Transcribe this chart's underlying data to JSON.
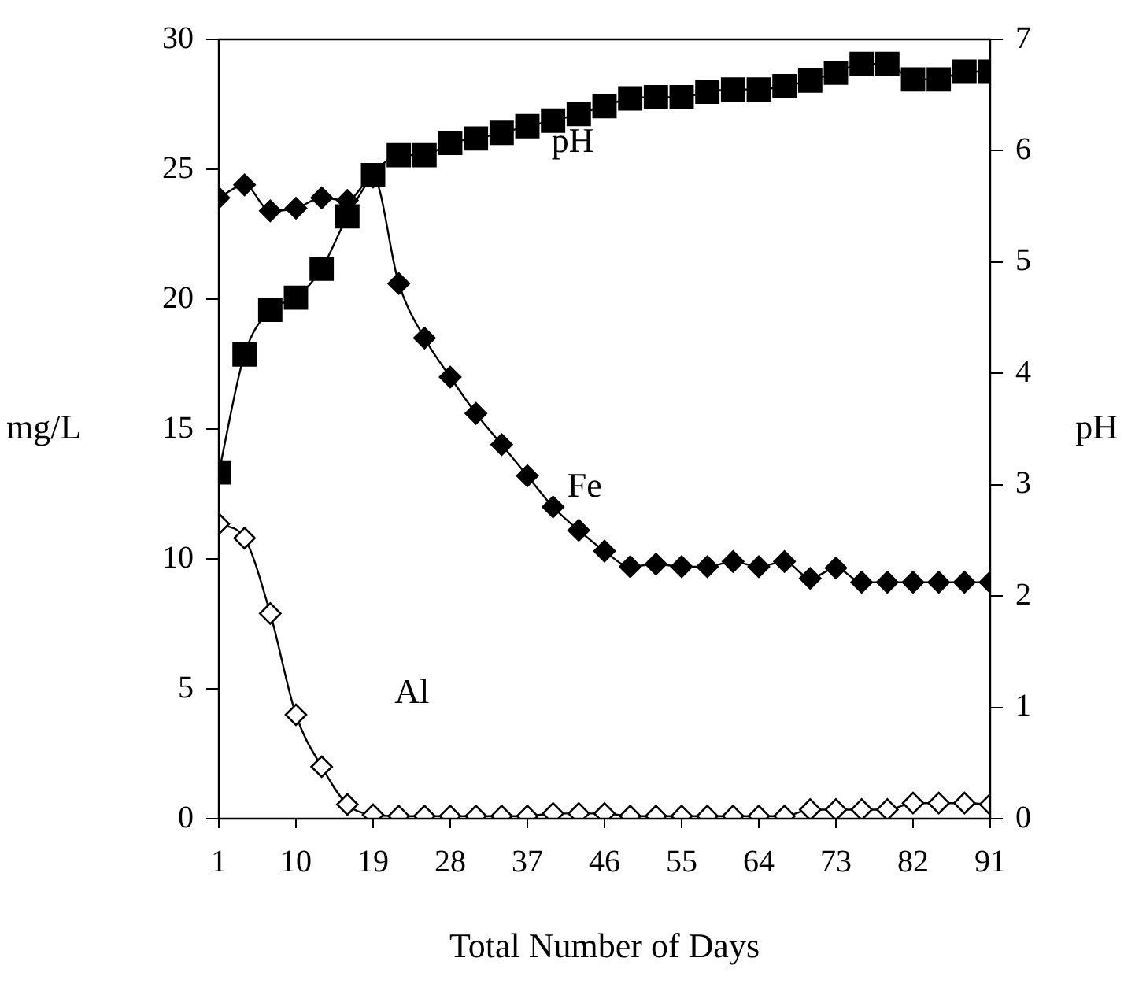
{
  "chart_data": {
    "type": "line",
    "xlabel": "Total Number of Days",
    "ylabel": "mg/L",
    "y2label": "pH",
    "x": [
      1,
      4,
      7,
      10,
      13,
      16,
      19,
      22,
      25,
      28,
      31,
      34,
      37,
      40,
      43,
      46,
      49,
      52,
      55,
      58,
      61,
      64,
      67,
      70,
      73,
      76,
      79,
      82,
      85,
      88,
      91
    ],
    "xlim": [
      1,
      91
    ],
    "xticks": [
      1,
      10,
      19,
      28,
      37,
      46,
      55,
      64,
      73,
      82,
      91
    ],
    "ylim": [
      0,
      30
    ],
    "yticks": [
      0,
      5,
      10,
      15,
      20,
      25,
      30
    ],
    "y2lim": [
      0,
      7
    ],
    "y2ticks": [
      0,
      1,
      2,
      3,
      4,
      5,
      6,
      7
    ],
    "grid": false,
    "legend": false,
    "line_style": "solid",
    "series": [
      {
        "name": "Fe",
        "color": "#000000",
        "marker": "diamond",
        "axis": "y",
        "values": [
          23.9,
          24.4,
          23.4,
          23.5,
          23.9,
          23.8,
          24.7,
          20.6,
          18.5,
          17.0,
          15.6,
          14.4,
          13.2,
          12.0,
          11.1,
          10.3,
          9.7,
          9.8,
          9.7,
          9.7,
          9.9,
          9.7,
          9.9,
          9.25,
          9.65,
          9.1,
          9.1,
          9.1,
          9.1,
          9.1,
          9.1
        ]
      },
      {
        "name": "pH",
        "color": "#000000",
        "marker": "square",
        "axis": "y2",
        "values": [
          3.11,
          4.17,
          4.57,
          4.68,
          4.94,
          5.41,
          5.78,
          5.96,
          5.96,
          6.07,
          6.11,
          6.16,
          6.22,
          6.27,
          6.33,
          6.4,
          6.47,
          6.48,
          6.48,
          6.53,
          6.55,
          6.55,
          6.58,
          6.63,
          6.7,
          6.78,
          6.78,
          6.64,
          6.64,
          6.71,
          6.71
        ]
      },
      {
        "name": "Al",
        "color": "#000000",
        "marker": "diamond",
        "axis": "y",
        "values": [
          11.35,
          10.8,
          7.9,
          4.0,
          2.0,
          0.55,
          0.15,
          0.1,
          0.1,
          0.1,
          0.1,
          0.1,
          0.1,
          0.2,
          0.2,
          0.2,
          0.1,
          0.1,
          0.1,
          0.1,
          0.1,
          0.1,
          0.1,
          0.35,
          0.35,
          0.35,
          0.35,
          0.6,
          0.6,
          0.6,
          0.55
        ]
      }
    ]
  }
}
